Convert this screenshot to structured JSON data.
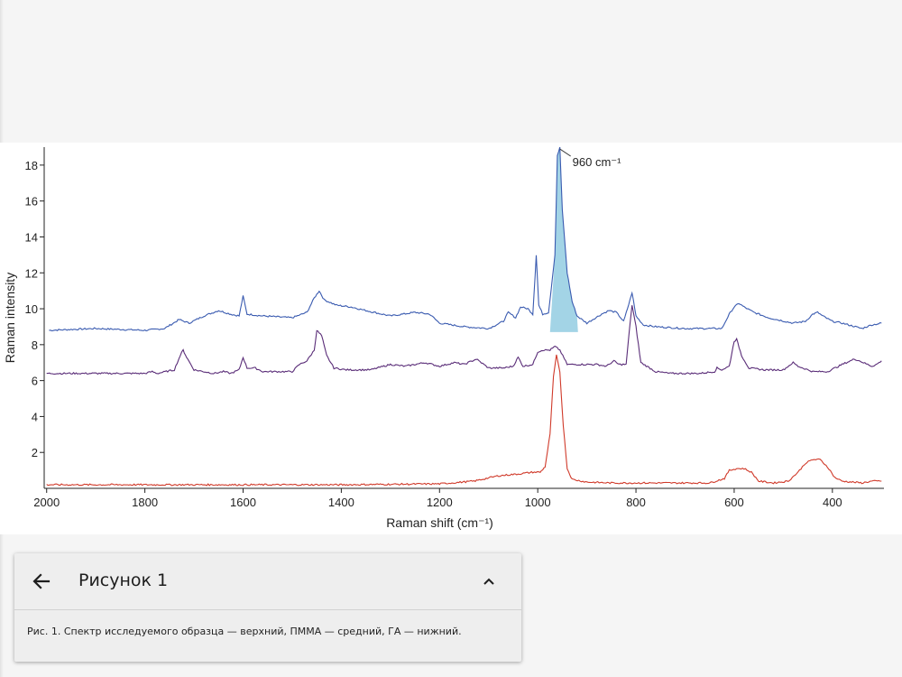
{
  "card": {
    "title": "Рисунок 1",
    "caption": "Рис. 1. Спектр исследуемого образца — верхний, ПММА — средний, ГА — нижний."
  },
  "icons": {
    "back": "arrow-left-icon",
    "collapse": "chevron-up-icon"
  },
  "chart_data": {
    "type": "line",
    "title": "",
    "xlabel": "Raman shift (cm⁻¹)",
    "ylabel": "Raman intensity",
    "xlim": [
      2005,
      295
    ],
    "ylim": [
      0,
      19
    ],
    "x_reversed": true,
    "xticks": [
      2000,
      1800,
      1600,
      1400,
      1200,
      1000,
      800,
      600,
      400
    ],
    "yticks": [
      2,
      4,
      6,
      8,
      10,
      12,
      14,
      16,
      18
    ],
    "grid": false,
    "annotations": [
      {
        "text": "960 cm⁻¹",
        "x": 955,
        "y": 19.0
      }
    ],
    "highlight": {
      "x_from": 975,
      "x_to": 918,
      "base": 8.7,
      "color": "#a3d4e6"
    },
    "series": [
      {
        "color": "#3a5bb0",
        "points": [
          [
            1995,
            8.8
          ],
          [
            1900,
            8.9
          ],
          [
            1800,
            8.8
          ],
          [
            1760,
            8.9
          ],
          [
            1730,
            9.4
          ],
          [
            1710,
            9.2
          ],
          [
            1680,
            9.6
          ],
          [
            1650,
            9.9
          ],
          [
            1625,
            9.7
          ],
          [
            1608,
            9.6
          ],
          [
            1600,
            10.7
          ],
          [
            1592,
            9.7
          ],
          [
            1560,
            9.6
          ],
          [
            1500,
            9.5
          ],
          [
            1470,
            9.8
          ],
          [
            1455,
            10.6
          ],
          [
            1445,
            11.0
          ],
          [
            1435,
            10.5
          ],
          [
            1410,
            10.2
          ],
          [
            1380,
            10.1
          ],
          [
            1350,
            9.9
          ],
          [
            1300,
            9.6
          ],
          [
            1250,
            9.8
          ],
          [
            1220,
            9.7
          ],
          [
            1200,
            9.2
          ],
          [
            1150,
            9.0
          ],
          [
            1100,
            8.9
          ],
          [
            1070,
            9.3
          ],
          [
            1060,
            9.8
          ],
          [
            1045,
            9.5
          ],
          [
            1035,
            10.1
          ],
          [
            1020,
            10.0
          ],
          [
            1010,
            9.7
          ],
          [
            1003,
            13.0
          ],
          [
            998,
            10.2
          ],
          [
            990,
            9.7
          ],
          [
            978,
            9.8
          ],
          [
            965,
            13.0
          ],
          [
            960,
            18.5
          ],
          [
            955,
            19.0
          ],
          [
            950,
            15.5
          ],
          [
            940,
            12.0
          ],
          [
            930,
            10.4
          ],
          [
            920,
            9.6
          ],
          [
            900,
            9.2
          ],
          [
            870,
            9.7
          ],
          [
            855,
            9.9
          ],
          [
            840,
            9.8
          ],
          [
            825,
            9.3
          ],
          [
            812,
            10.5
          ],
          [
            808,
            10.9
          ],
          [
            800,
            9.6
          ],
          [
            785,
            9.1
          ],
          [
            760,
            9.0
          ],
          [
            700,
            8.9
          ],
          [
            640,
            8.9
          ],
          [
            625,
            8.9
          ],
          [
            610,
            9.7
          ],
          [
            600,
            10.1
          ],
          [
            590,
            10.3
          ],
          [
            580,
            10.1
          ],
          [
            560,
            9.8
          ],
          [
            530,
            9.5
          ],
          [
            480,
            9.2
          ],
          [
            455,
            9.3
          ],
          [
            440,
            9.7
          ],
          [
            430,
            9.8
          ],
          [
            420,
            9.6
          ],
          [
            400,
            9.3
          ],
          [
            380,
            9.2
          ],
          [
            340,
            8.9
          ],
          [
            320,
            9.1
          ],
          [
            300,
            9.2
          ]
        ]
      },
      {
        "color": "#5a2d78",
        "points": [
          [
            2000,
            6.4
          ],
          [
            1800,
            6.4
          ],
          [
            1785,
            6.5
          ],
          [
            1775,
            6.4
          ],
          [
            1740,
            6.6
          ],
          [
            1728,
            7.4
          ],
          [
            1722,
            7.7
          ],
          [
            1715,
            7.3
          ],
          [
            1700,
            6.6
          ],
          [
            1660,
            6.4
          ],
          [
            1640,
            6.5
          ],
          [
            1625,
            6.4
          ],
          [
            1608,
            6.6
          ],
          [
            1600,
            7.3
          ],
          [
            1592,
            6.7
          ],
          [
            1575,
            6.7
          ],
          [
            1560,
            6.5
          ],
          [
            1500,
            6.5
          ],
          [
            1485,
            6.9
          ],
          [
            1470,
            7.1
          ],
          [
            1455,
            7.7
          ],
          [
            1450,
            8.8
          ],
          [
            1440,
            8.5
          ],
          [
            1430,
            7.4
          ],
          [
            1415,
            6.7
          ],
          [
            1390,
            6.6
          ],
          [
            1340,
            6.6
          ],
          [
            1300,
            6.9
          ],
          [
            1270,
            6.8
          ],
          [
            1230,
            7.0
          ],
          [
            1200,
            6.8
          ],
          [
            1170,
            7.0
          ],
          [
            1150,
            6.9
          ],
          [
            1125,
            7.2
          ],
          [
            1115,
            7.0
          ],
          [
            1100,
            6.7
          ],
          [
            1070,
            6.7
          ],
          [
            1050,
            6.8
          ],
          [
            1040,
            7.3
          ],
          [
            1030,
            6.8
          ],
          [
            1010,
            6.9
          ],
          [
            1000,
            7.6
          ],
          [
            990,
            7.7
          ],
          [
            975,
            7.7
          ],
          [
            965,
            7.9
          ],
          [
            955,
            7.7
          ],
          [
            940,
            6.9
          ],
          [
            910,
            6.9
          ],
          [
            880,
            6.9
          ],
          [
            860,
            6.8
          ],
          [
            845,
            7.1
          ],
          [
            835,
            6.9
          ],
          [
            820,
            6.9
          ],
          [
            812,
            9.2
          ],
          [
            808,
            10.2
          ],
          [
            800,
            9.0
          ],
          [
            790,
            7.0
          ],
          [
            760,
            6.5
          ],
          [
            730,
            6.4
          ],
          [
            670,
            6.4
          ],
          [
            640,
            6.5
          ],
          [
            635,
            6.7
          ],
          [
            625,
            6.6
          ],
          [
            610,
            6.8
          ],
          [
            600,
            8.2
          ],
          [
            595,
            8.3
          ],
          [
            585,
            7.4
          ],
          [
            570,
            6.7
          ],
          [
            540,
            6.6
          ],
          [
            500,
            6.6
          ],
          [
            480,
            7.0
          ],
          [
            470,
            6.8
          ],
          [
            440,
            6.5
          ],
          [
            410,
            6.5
          ],
          [
            380,
            6.9
          ],
          [
            355,
            7.2
          ],
          [
            345,
            7.1
          ],
          [
            320,
            6.8
          ],
          [
            310,
            6.9
          ],
          [
            300,
            7.1
          ]
        ]
      },
      {
        "color": "#d03a2a",
        "points": [
          [
            2000,
            0.2
          ],
          [
            1800,
            0.2
          ],
          [
            1600,
            0.2
          ],
          [
            1400,
            0.2
          ],
          [
            1200,
            0.25
          ],
          [
            1130,
            0.4
          ],
          [
            1080,
            0.7
          ],
          [
            1040,
            0.8
          ],
          [
            1010,
            0.9
          ],
          [
            995,
            0.9
          ],
          [
            985,
            1.2
          ],
          [
            975,
            3.0
          ],
          [
            968,
            6.2
          ],
          [
            962,
            7.4
          ],
          [
            955,
            6.5
          ],
          [
            948,
            3.5
          ],
          [
            940,
            1.1
          ],
          [
            930,
            0.5
          ],
          [
            900,
            0.35
          ],
          [
            850,
            0.3
          ],
          [
            750,
            0.3
          ],
          [
            650,
            0.3
          ],
          [
            620,
            0.55
          ],
          [
            610,
            1.0
          ],
          [
            595,
            1.1
          ],
          [
            580,
            1.1
          ],
          [
            565,
            0.9
          ],
          [
            550,
            0.4
          ],
          [
            520,
            0.3
          ],
          [
            490,
            0.4
          ],
          [
            470,
            0.9
          ],
          [
            455,
            1.4
          ],
          [
            440,
            1.6
          ],
          [
            425,
            1.6
          ],
          [
            410,
            1.2
          ],
          [
            395,
            0.6
          ],
          [
            380,
            0.4
          ],
          [
            340,
            0.3
          ],
          [
            320,
            0.4
          ],
          [
            300,
            0.4
          ]
        ]
      }
    ]
  }
}
